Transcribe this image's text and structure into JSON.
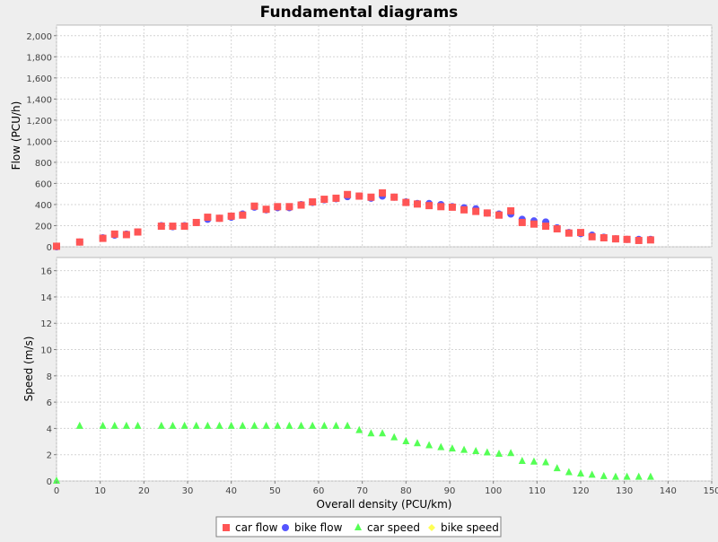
{
  "title": "Fundamental diagrams",
  "colors": {
    "background": "#eeeeee",
    "plot_background": "#ffffff",
    "grid": "#d4d4d4",
    "car_flow": "#ff5555",
    "bike_flow": "#5555ff",
    "car_speed": "#55ff55",
    "bike_speed": "#ffff55"
  },
  "chart_data": {
    "type": "scatter",
    "title": "Fundamental diagrams",
    "xlabel": "Overall density (PCU/km)",
    "xlim": [
      0,
      150
    ],
    "x_ticks": [
      0,
      10,
      20,
      30,
      40,
      50,
      60,
      70,
      80,
      90,
      100,
      110,
      120,
      130,
      140,
      150
    ],
    "grid": true,
    "legend_position": "bottom",
    "legend": [
      {
        "label": "car flow",
        "marker": "square",
        "color": "#ff5555"
      },
      {
        "label": "bike flow",
        "marker": "circle",
        "color": "#5555ff"
      },
      {
        "label": "car speed",
        "marker": "triangle",
        "color": "#55ff55"
      },
      {
        "label": "bike speed",
        "marker": "diamond",
        "color": "#ffff55"
      }
    ],
    "panels": [
      {
        "ylabel": "Flow (PCU/h)",
        "ylim": [
          0,
          2100
        ],
        "y_ticks": [
          0,
          200,
          400,
          600,
          800,
          1000,
          1200,
          1400,
          1600,
          1800,
          2000
        ],
        "y_tick_labels": [
          "0",
          "200",
          "400",
          "600",
          "800",
          "1,000",
          "1,200",
          "1,400",
          "1,600",
          "1,800",
          "2,000"
        ],
        "series": [
          {
            "name": "bike flow",
            "marker": "circle",
            "color": "#5555ff",
            "x": [
              0,
              5.3,
              10.6,
              13.3,
              16,
              18.6,
              24,
              26.6,
              29.3,
              32,
              34.6,
              37.3,
              40,
              42.6,
              45.3,
              48,
              50.6,
              53.3,
              56,
              58.6,
              61.3,
              64,
              66.6,
              69.3,
              72,
              74.6,
              77.3,
              80,
              82.6,
              85.3,
              88,
              90.6,
              93.3,
              96,
              98.6,
              101.3,
              104,
              106.6,
              109.3,
              112,
              114.6,
              117.3,
              120,
              122.6,
              125.3,
              128,
              130.6,
              133.3,
              136
            ],
            "y": [
              0,
              45,
              85,
              110,
              120,
              140,
              200,
              190,
              200,
              230,
              260,
              270,
              280,
              310,
              375,
              350,
              370,
              370,
              400,
              420,
              445,
              455,
              475,
              480,
              460,
              480,
              470,
              425,
              410,
              410,
              400,
              380,
              370,
              360,
              320,
              310,
              310,
              260,
              245,
              235,
              180,
              135,
              125,
              110,
              90,
              75,
              70,
              70,
              70
            ]
          },
          {
            "name": "car flow",
            "marker": "square",
            "color": "#ff5555",
            "x": [
              0,
              5.3,
              10.6,
              13.3,
              16,
              18.6,
              24,
              26.6,
              29.3,
              32,
              34.6,
              37.3,
              40,
              42.6,
              45.3,
              48,
              50.6,
              53.3,
              56,
              58.6,
              61.3,
              64,
              66.6,
              69.3,
              72,
              74.6,
              77.3,
              80,
              82.6,
              85.3,
              88,
              90.6,
              93.3,
              96,
              98.6,
              101.3,
              104,
              106.6,
              109.3,
              112,
              114.6,
              117.3,
              120,
              122.6,
              125.3,
              128,
              130.6,
              133.3,
              136
            ],
            "y": [
              5,
              45,
              80,
              120,
              115,
              140,
              195,
              195,
              195,
              230,
              280,
              270,
              290,
              300,
              385,
              355,
              380,
              380,
              395,
              425,
              450,
              460,
              495,
              480,
              470,
              510,
              470,
              420,
              405,
              390,
              380,
              375,
              350,
              335,
              320,
              300,
              340,
              230,
              215,
              195,
              170,
              130,
              135,
              95,
              85,
              75,
              70,
              60,
              65
            ]
          }
        ]
      },
      {
        "ylabel": "Speed (m/s)",
        "ylim": [
          0,
          17
        ],
        "y_ticks": [
          0,
          2,
          4,
          6,
          8,
          10,
          12,
          14,
          16
        ],
        "y_tick_labels": [
          "0",
          "2",
          "4",
          "6",
          "8",
          "10",
          "12",
          "14",
          "16"
        ],
        "series": [
          {
            "name": "car speed",
            "marker": "triangle",
            "color": "#55ff55",
            "x": [
              0,
              5.3,
              10.6,
              13.3,
              16,
              18.6,
              24,
              26.6,
              29.3,
              32,
              34.6,
              37.3,
              40,
              42.6,
              45.3,
              48,
              50.6,
              53.3,
              56,
              58.6,
              61.3,
              64,
              66.6,
              69.3,
              72,
              74.6,
              77.3,
              80,
              82.6,
              85.3,
              88,
              90.6,
              93.3,
              96,
              98.6,
              101.3,
              104,
              106.6,
              109.3,
              112,
              114.6,
              117.3,
              120,
              122.6,
              125.3,
              128,
              130.6,
              133.3,
              136
            ],
            "y": [
              0,
              4.17,
              4.17,
              4.17,
              4.17,
              4.17,
              4.17,
              4.17,
              4.17,
              4.17,
              4.17,
              4.17,
              4.17,
              4.17,
              4.17,
              4.17,
              4.17,
              4.17,
              4.17,
              4.17,
              4.17,
              4.17,
              4.17,
              3.85,
              3.6,
              3.6,
              3.3,
              3.0,
              2.85,
              2.7,
              2.55,
              2.45,
              2.35,
              2.25,
              2.15,
              2.05,
              2.1,
              1.5,
              1.45,
              1.4,
              0.95,
              0.65,
              0.55,
              0.45,
              0.35,
              0.3,
              0.3,
              0.3,
              0.3
            ]
          },
          {
            "name": "bike speed",
            "marker": "diamond",
            "color": "#ffff55",
            "x": [],
            "y": []
          }
        ]
      }
    ]
  }
}
